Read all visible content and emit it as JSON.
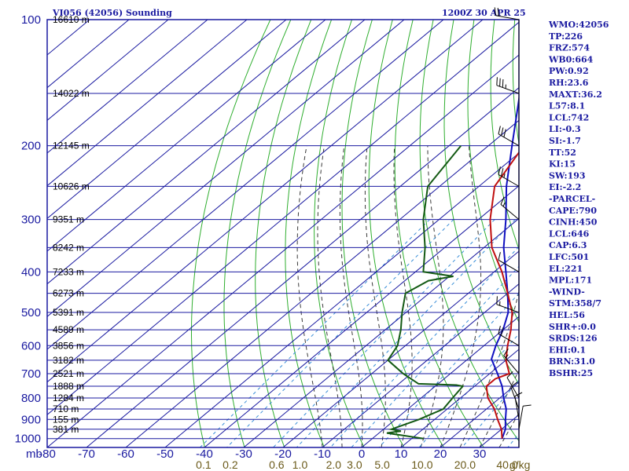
{
  "header": {
    "station": "VI056 (42056) Sounding",
    "time": "1200Z 30 APR 25"
  },
  "chart_data": {
    "type": "skew-t",
    "pressure_levels": [
      100,
      200,
      300,
      400,
      500,
      600,
      700,
      800,
      900,
      1000
    ],
    "isobar_grid": [
      100,
      150,
      200,
      250,
      300,
      350,
      400,
      450,
      500,
      550,
      600,
      650,
      700,
      750,
      800,
      850,
      900,
      950,
      1000
    ],
    "temperature_ticks": [
      -80,
      -70,
      -60,
      -50,
      -40,
      -30,
      -20,
      -10,
      0,
      10,
      20,
      30,
      40
    ],
    "temperature_tick_labels": [
      "-80",
      "-70",
      "-60",
      "-50",
      "-40",
      "-30",
      "-20",
      "-10",
      "0",
      "10",
      "20",
      "30",
      ""
    ],
    "pressure_axis_unit": "mb",
    "mixing_ratio_ticks": [
      {
        "value": 0.1,
        "label": "0.1"
      },
      {
        "value": 0.2,
        "label": "0.2"
      },
      {
        "value": 0.6,
        "label": "0.6"
      },
      {
        "value": 1.0,
        "label": "1.0"
      },
      {
        "value": 2.0,
        "label": "2.0"
      },
      {
        "value": 3.0,
        "label": "3.0"
      },
      {
        "value": 5.0,
        "label": "5.0"
      },
      {
        "value": 10.0,
        "label": "10.0"
      },
      {
        "value": 20.0,
        "label": "20.0"
      },
      {
        "value": 40.0,
        "label": "40.0"
      }
    ],
    "mixing_ratio_unit": "g/kg",
    "height_labels": [
      {
        "p": 100,
        "text": "16610 m"
      },
      {
        "p": 150,
        "text": "14022 m"
      },
      {
        "p": 200,
        "text": "12145 m"
      },
      {
        "p": 250,
        "text": "10626 m"
      },
      {
        "p": 300,
        "text": "9351 m"
      },
      {
        "p": 350,
        "text": "8242 m"
      },
      {
        "p": 400,
        "text": "7233 m"
      },
      {
        "p": 450,
        "text": "6273 m"
      },
      {
        "p": 500,
        "text": "5391 m"
      },
      {
        "p": 550,
        "text": "4589 m"
      },
      {
        "p": 600,
        "text": "3856 m"
      },
      {
        "p": 650,
        "text": "3182 m"
      },
      {
        "p": 700,
        "text": "2521 m"
      },
      {
        "p": 750,
        "text": "1888 m"
      },
      {
        "p": 800,
        "text": "1284 m"
      },
      {
        "p": 850,
        "text": "710 m"
      },
      {
        "p": 900,
        "text": "155 m"
      },
      {
        "p": 950,
        "text": "381 m"
      }
    ],
    "temperature_profile": [
      {
        "p": 100,
        "t": -61
      },
      {
        "p": 150,
        "t": -52
      },
      {
        "p": 200,
        "t": -51
      },
      {
        "p": 250,
        "t": -46
      },
      {
        "p": 300,
        "t": -37
      },
      {
        "p": 350,
        "t": -28
      },
      {
        "p": 400,
        "t": -18
      },
      {
        "p": 450,
        "t": -10
      },
      {
        "p": 500,
        "t": -3
      },
      {
        "p": 550,
        "t": 2
      },
      {
        "p": 600,
        "t": 6
      },
      {
        "p": 650,
        "t": 10
      },
      {
        "p": 700,
        "t": 15
      },
      {
        "p": 720,
        "t": 13
      },
      {
        "p": 750,
        "t": 13
      },
      {
        "p": 800,
        "t": 17
      },
      {
        "p": 850,
        "t": 22
      },
      {
        "p": 900,
        "t": 26
      },
      {
        "p": 950,
        "t": 30
      },
      {
        "p": 1000,
        "t": 33
      }
    ],
    "dewpoint_profile": [
      {
        "p": 200,
        "t": -67
      },
      {
        "p": 250,
        "t": -63
      },
      {
        "p": 300,
        "t": -54
      },
      {
        "p": 350,
        "t": -45
      },
      {
        "p": 400,
        "t": -38
      },
      {
        "p": 410,
        "t": -29
      },
      {
        "p": 420,
        "t": -34
      },
      {
        "p": 450,
        "t": -36
      },
      {
        "p": 500,
        "t": -31
      },
      {
        "p": 550,
        "t": -26
      },
      {
        "p": 600,
        "t": -22
      },
      {
        "p": 650,
        "t": -20
      },
      {
        "p": 700,
        "t": -12
      },
      {
        "p": 740,
        "t": -5
      },
      {
        "p": 745,
        "t": 5
      },
      {
        "p": 750,
        "t": 7
      },
      {
        "p": 800,
        "t": 8
      },
      {
        "p": 850,
        "t": 9
      },
      {
        "p": 900,
        "t": 6
      },
      {
        "p": 950,
        "t": 2
      },
      {
        "p": 960,
        "t": 5
      },
      {
        "p": 970,
        "t": 2
      },
      {
        "p": 1000,
        "t": 13
      }
    ],
    "parcel_profile": [
      {
        "p": 100,
        "t": -60
      },
      {
        "p": 150,
        "t": -68
      },
      {
        "p": 200,
        "t": -54
      },
      {
        "p": 250,
        "t": -43
      },
      {
        "p": 300,
        "t": -33
      },
      {
        "p": 350,
        "t": -25
      },
      {
        "p": 400,
        "t": -17
      },
      {
        "p": 450,
        "t": -10
      },
      {
        "p": 500,
        "t": -4
      },
      {
        "p": 550,
        "t": 0
      },
      {
        "p": 600,
        "t": 3
      },
      {
        "p": 646,
        "t": 6
      },
      {
        "p": 700,
        "t": 12
      },
      {
        "p": 750,
        "t": 17
      },
      {
        "p": 800,
        "t": 21
      },
      {
        "p": 850,
        "t": 25
      },
      {
        "p": 900,
        "t": 28
      },
      {
        "p": 950,
        "t": 31
      },
      {
        "p": 1000,
        "t": 33
      }
    ],
    "wind_levels": [
      {
        "p": 100,
        "speed": 20,
        "dir": 280
      },
      {
        "p": 150,
        "speed": 35,
        "dir": 290
      },
      {
        "p": 200,
        "speed": 30,
        "dir": 300
      },
      {
        "p": 250,
        "speed": 25,
        "dir": 300
      },
      {
        "p": 300,
        "speed": 15,
        "dir": 310
      },
      {
        "p": 400,
        "speed": 10,
        "dir": 300
      },
      {
        "p": 500,
        "speed": 15,
        "dir": 290
      },
      {
        "p": 600,
        "speed": 20,
        "dir": 300
      },
      {
        "p": 700,
        "speed": 15,
        "dir": 320
      },
      {
        "p": 800,
        "speed": 10,
        "dir": 330
      },
      {
        "p": 850,
        "speed": 10,
        "dir": 340
      },
      {
        "p": 900,
        "speed": 10,
        "dir": 350
      },
      {
        "p": 950,
        "speed": 10,
        "dir": 10
      }
    ]
  },
  "indices": [
    "WMO:42056",
    "TP:226",
    "FRZ:574",
    "WB0:664",
    "PW:0.92",
    "RH:23.6",
    "MAXT:36.2",
    "L57:8.1",
    "LCL:742",
    "LI:-0.3",
    "SI:-1.7",
    "TT:52",
    "KI:15",
    "SW:193",
    "EI:-2.2",
    "-PARCEL-",
    "CAPE:790",
    "CINH:450",
    "LCL:646",
    "CAP:6.3",
    "LFC:501",
    "EL:221",
    "MPL:171",
    "-WIND-",
    "STM:358/7",
    "HEL:56",
    "SHR+:0.0",
    "SRDS:126",
    "EHI:0.1",
    "BRN:31.0",
    "BSHR:25"
  ],
  "colors": {
    "frame": "#1a1aa0",
    "isotherm": "#1a1aa0",
    "isobar": "#1a1aa0",
    "dry_adiabat": "#2fae2f",
    "moist_adiabat": "#3a3a3a",
    "mixing_ratio": "#3a8fd8",
    "temperature": "#c01010",
    "dewpoint": "#145a14",
    "parcel": "#1010c0",
    "wind": "#000000",
    "wlabel": "#6b5a1a"
  }
}
